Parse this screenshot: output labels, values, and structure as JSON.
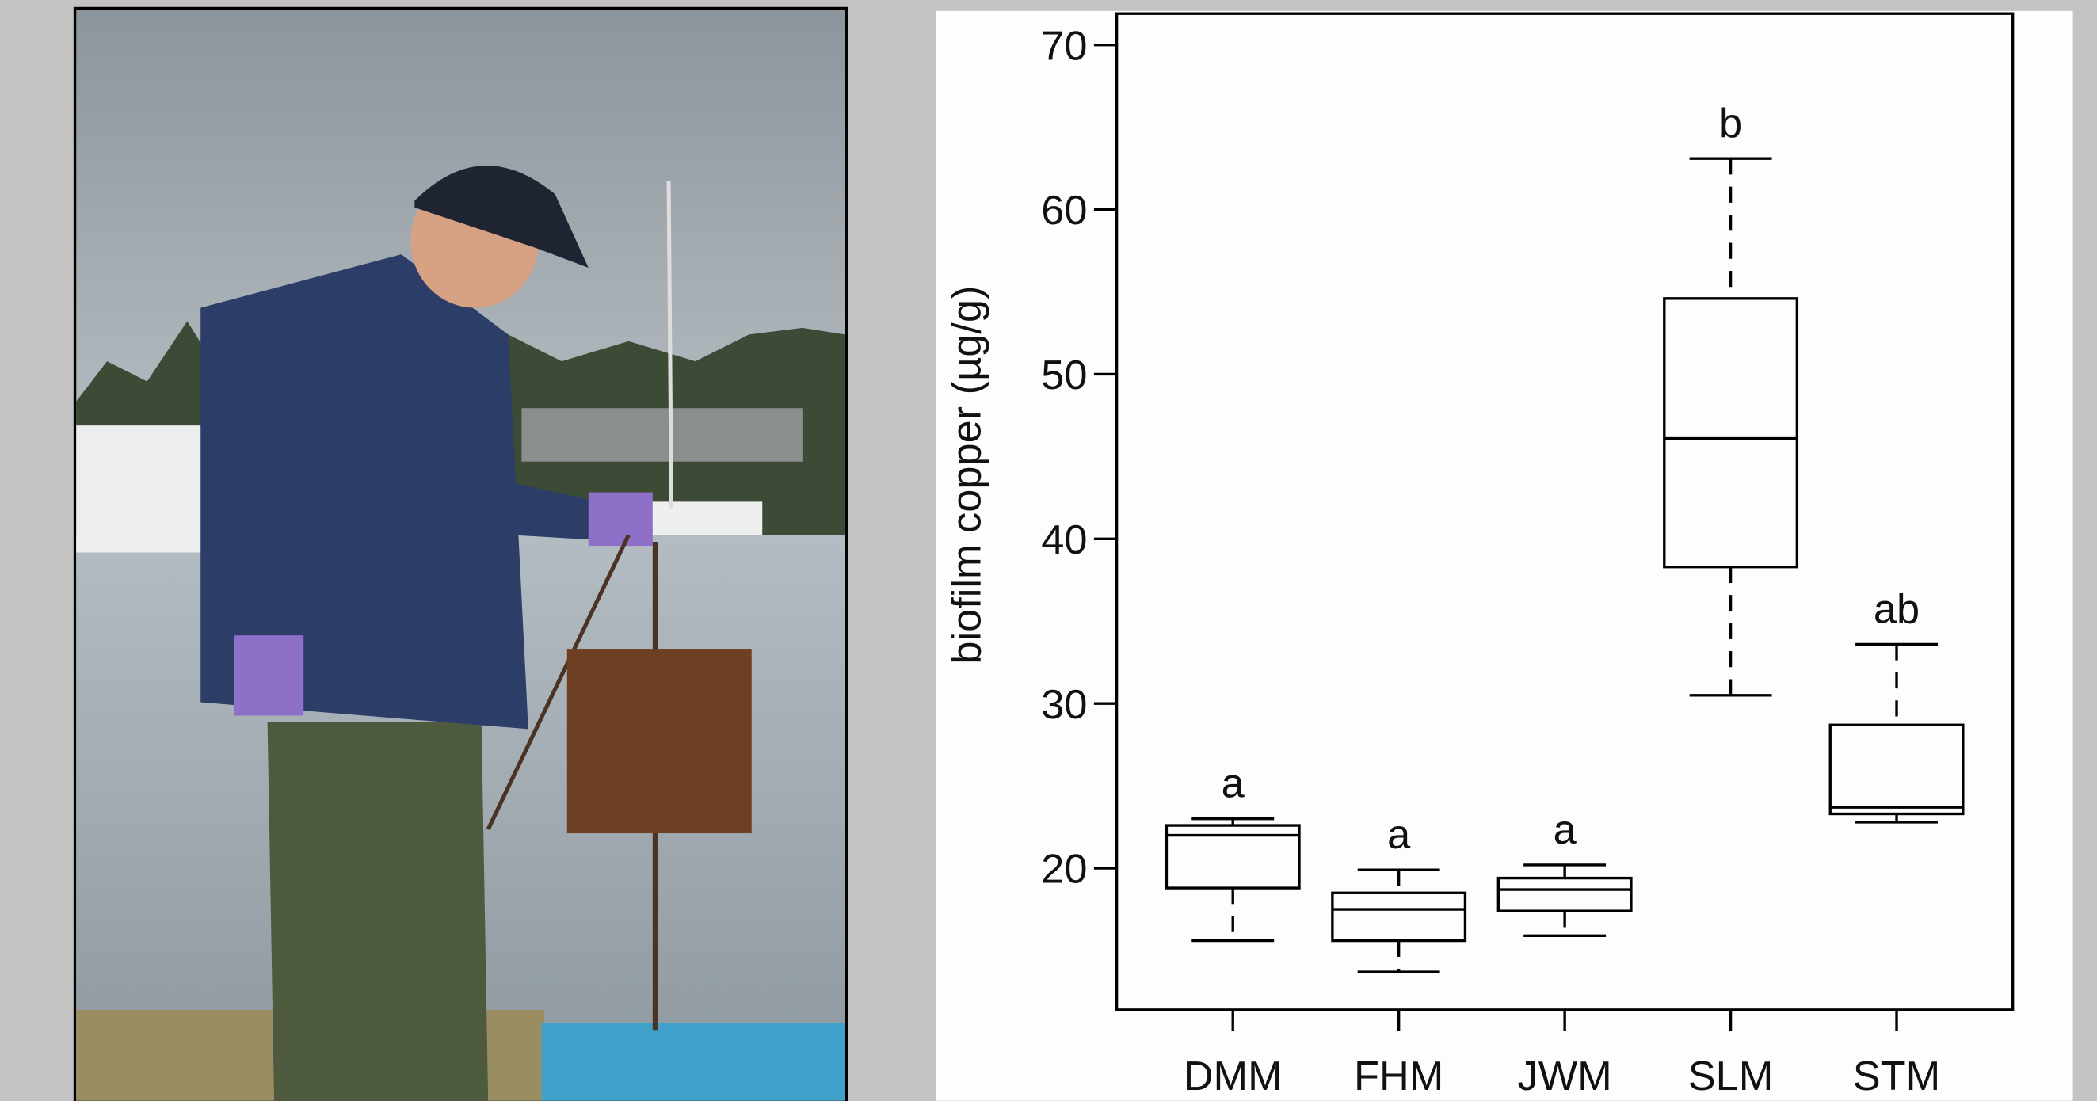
{
  "chart_data": {
    "type": "box",
    "y_label": "biofilm copper (µg/g)",
    "categories": [
      "DMM",
      "FHM",
      "JWM",
      "SLM",
      "STM"
    ],
    "stats": [
      {
        "low": 15.6,
        "q1": 18.8,
        "median": 22.0,
        "q3": 22.6,
        "high": 23.0
      },
      {
        "low": 13.7,
        "q1": 15.6,
        "median": 17.5,
        "q3": 18.5,
        "high": 19.9
      },
      {
        "low": 15.9,
        "q1": 17.4,
        "median": 18.7,
        "q3": 19.4,
        "high": 20.2
      },
      {
        "low": 30.5,
        "q1": 38.3,
        "median": 46.1,
        "q3": 54.6,
        "high": 63.1
      },
      {
        "low": 22.8,
        "q1": 23.3,
        "median": 23.7,
        "q3": 28.7,
        "high": 33.6
      }
    ],
    "group_letters": [
      "a",
      "a",
      "a",
      "b",
      "ab"
    ],
    "color": "#000000",
    "ylim": [
      11.4,
      71.9
    ],
    "yticks": [
      20,
      30,
      40,
      50,
      60,
      70
    ]
  }
}
